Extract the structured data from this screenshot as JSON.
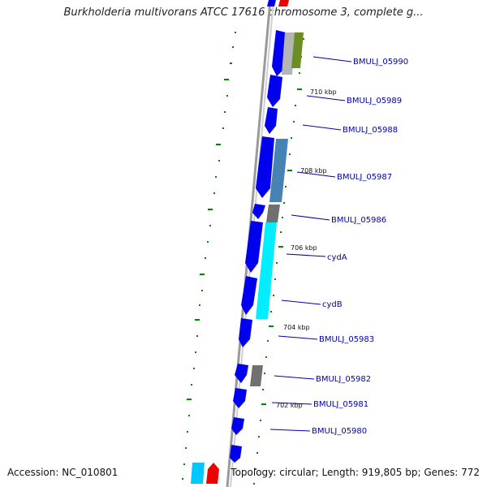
{
  "title": "Burkholderia multivorans ATCC 17616 chromosome 3, complete g...",
  "footer": {
    "accession": "Accession: NC_010801",
    "summary": "Topology: circular; Length: 919,805 bp; Genes: 772"
  },
  "colors": {
    "backbone": "#9a9a9a",
    "cds_blue": "#0000ee",
    "cds_cyan": "#00eeff",
    "cds_steel": "#4682b4",
    "cds_gray": "#777777",
    "cds_olive": "#6b8e23",
    "cds_red": "#ee0000",
    "tick_green": "#008800",
    "label": "#0000aa"
  },
  "genes": [
    {
      "label": "BMULJ_05990"
    },
    {
      "label": "BMULJ_05989"
    },
    {
      "label": "BMULJ_05988"
    },
    {
      "label": "BMULJ_05987"
    },
    {
      "label": "BMULJ_05986"
    },
    {
      "label": "cydA"
    },
    {
      "label": "cydB"
    },
    {
      "label": "BMULJ_05983"
    },
    {
      "label": "BMULJ_05982"
    },
    {
      "label": "BMULJ_05981"
    },
    {
      "label": "BMULJ_05980"
    }
  ],
  "ticks": [
    {
      "label": "710 kbp"
    },
    {
      "label": "708 kbp"
    },
    {
      "label": "706 kbp"
    },
    {
      "label": "704 kbp"
    },
    {
      "label": "702 kbp"
    }
  ]
}
